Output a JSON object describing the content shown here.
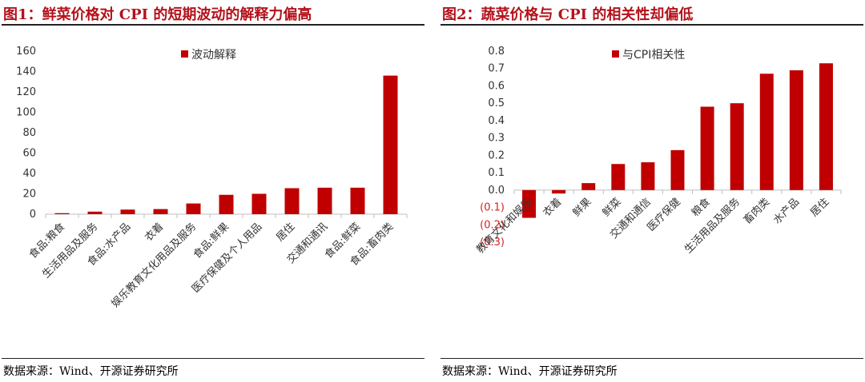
{
  "charts": {
    "left": {
      "title": "图1：鲜菜价格对 CPI 的短期波动的解释力偏高",
      "source": "数据来源：Wind、开源证券研究所"
    },
    "right": {
      "title": "图2：蔬菜价格与 CPI 的相关性却偏低",
      "source": "数据来源：Wind、开源证券研究所"
    }
  },
  "colors": {
    "bar": "#c00000",
    "axis": "#bfbfbf",
    "negative_label": "#d61f1f"
  },
  "chart_data": [
    {
      "type": "bar",
      "title": "图1：鲜菜价格对 CPI 的短期波动的解释力偏高",
      "categories": [
        "食品:粮食",
        "生活用品及服务",
        "食品:水产品",
        "衣着",
        "娱乐教育文化用品及服务",
        "食品:鲜果",
        "医疗保健及个人用品",
        "居住",
        "交通和通讯",
        "食品:鲜菜",
        "食品:畜肉类"
      ],
      "series": [
        {
          "name": "波动解释",
          "values": [
            1,
            2.5,
            4.5,
            5,
            10.5,
            19,
            20,
            25.5,
            26,
            26,
            136
          ]
        }
      ],
      "yticks": [
        "0",
        "20",
        "40",
        "60",
        "80",
        "100",
        "120",
        "140",
        "160"
      ],
      "ylim": [
        0,
        160
      ],
      "legend": "top-center",
      "grid": false
    },
    {
      "type": "bar",
      "title": "图2：蔬菜价格与 CPI 的相关性却偏低",
      "categories": [
        "教育文化和娱乐",
        "衣着",
        "鲜果",
        "鲜菜",
        "交通和通信",
        "医疗保健",
        "粮食",
        "生活用品及服务",
        "畜肉类",
        "水产品",
        "居住"
      ],
      "series": [
        {
          "name": "与CPI相关性",
          "values": [
            -0.16,
            -0.02,
            0.04,
            0.15,
            0.16,
            0.23,
            0.48,
            0.5,
            0.67,
            0.69,
            0.73
          ]
        }
      ],
      "yticks": [
        "(0.3)",
        "(0.2)",
        "(0.1)",
        "0.0",
        "0.1",
        "0.2",
        "0.3",
        "0.4",
        "0.5",
        "0.6",
        "0.7",
        "0.8"
      ],
      "ylim": [
        -0.3,
        0.8
      ],
      "legend": "top-center",
      "grid": false
    }
  ]
}
